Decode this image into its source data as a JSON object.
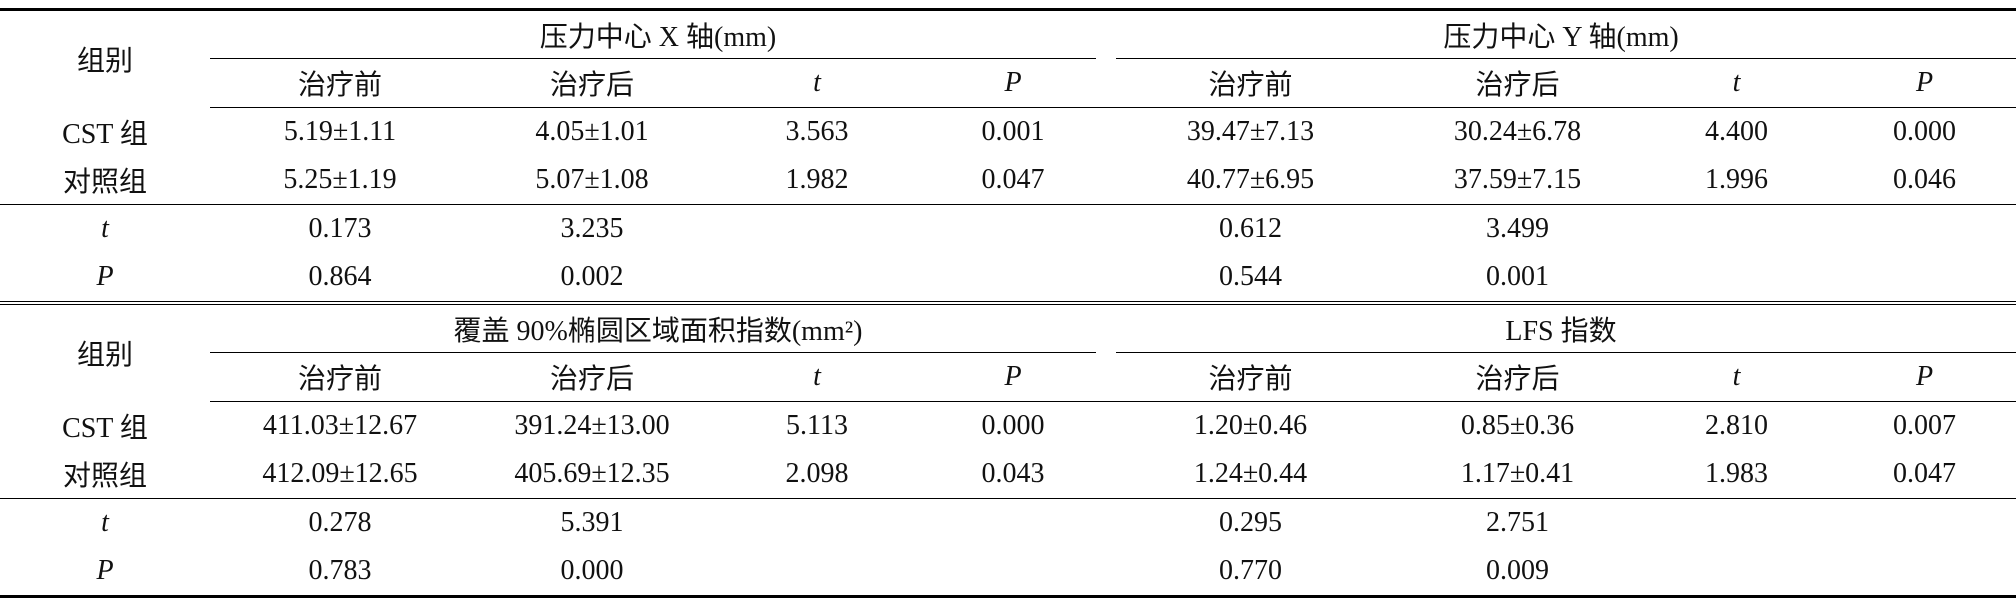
{
  "tables": [
    {
      "group_header": "组别",
      "groups": [
        "压力中心 X 轴(mm)",
        "压力中心 Y 轴(mm)"
      ],
      "subheaders": [
        "治疗前",
        "治疗后",
        "t",
        "P",
        "治疗前",
        "治疗后",
        "t",
        "P"
      ],
      "rows": [
        [
          "CST 组",
          "5.19±1.11",
          "4.05±1.01",
          "3.563",
          "0.001",
          "39.47±7.13",
          "30.24±6.78",
          "4.400",
          "0.000"
        ],
        [
          "对照组",
          "5.25±1.19",
          "5.07±1.08",
          "1.982",
          "0.047",
          "40.77±6.95",
          "37.59±7.15",
          "1.996",
          "0.046"
        ],
        [
          "t",
          "0.173",
          "3.235",
          null,
          null,
          "0.612",
          "3.499",
          null,
          null
        ],
        [
          "P",
          "0.864",
          "0.002",
          null,
          null,
          "0.544",
          "0.001",
          null,
          null
        ]
      ]
    },
    {
      "group_header": "组别",
      "groups": [
        "覆盖 90%椭圆区域面积指数(mm²)",
        "LFS 指数"
      ],
      "subheaders": [
        "治疗前",
        "治疗后",
        "t",
        "P",
        "治疗前",
        "治疗后",
        "t",
        "P"
      ],
      "rows": [
        [
          "CST 组",
          "411.03±12.67",
          "391.24±13.00",
          "5.113",
          "0.000",
          "1.20±0.46",
          "0.85±0.36",
          "2.810",
          "0.007"
        ],
        [
          "对照组",
          "412.09±12.65",
          "405.69±12.35",
          "2.098",
          "0.043",
          "1.24±0.44",
          "1.17±0.41",
          "1.983",
          "0.047"
        ],
        [
          "t",
          "0.278",
          "5.391",
          null,
          null,
          "0.295",
          "2.751",
          null,
          null
        ],
        [
          "P",
          "0.783",
          "0.000",
          null,
          null,
          "0.770",
          "0.009",
          null,
          null
        ]
      ]
    }
  ]
}
